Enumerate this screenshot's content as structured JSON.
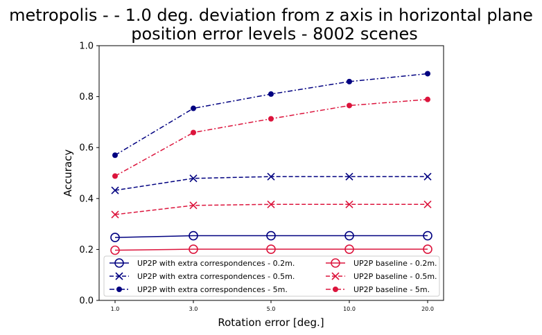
{
  "chart_data": {
    "type": "line",
    "title_line1": "metropolis -  - 1.0 deg. deviation from z axis in horizontal plane",
    "title_line2": "position error levels - 8002 scenes",
    "xlabel": "Rotation error [deg.]",
    "ylabel": "Accuracy",
    "categories": [
      "1.0",
      "3.0",
      "5.0",
      "10.0",
      "20.0"
    ],
    "ylim": [
      0.0,
      1.0
    ],
    "yticks": [
      "0.0",
      "0.2",
      "0.4",
      "0.6",
      "0.8",
      "1.0"
    ],
    "grid": false,
    "legend_position": "lower-center",
    "series": [
      {
        "name": "UP2P with extra correspondences - 0.2m.",
        "color": "#000080",
        "marker": "open-circle",
        "dash": "solid",
        "values": [
          0.247,
          0.254,
          0.254,
          0.254,
          0.254
        ]
      },
      {
        "name": "UP2P with extra correspondences - 0.5m.",
        "color": "#000080",
        "marker": "x",
        "dash": "dashed",
        "values": [
          0.432,
          0.479,
          0.486,
          0.486,
          0.486
        ]
      },
      {
        "name": "UP2P with extra correspondences - 5m.",
        "color": "#000080",
        "marker": "dot",
        "dash": "dashdot",
        "values": [
          0.57,
          0.754,
          0.81,
          0.859,
          0.89
        ]
      },
      {
        "name": "UP2P baseline - 0.2m.",
        "color": "#dc143c",
        "marker": "open-circle",
        "dash": "solid",
        "values": [
          0.197,
          0.201,
          0.201,
          0.201,
          0.201
        ]
      },
      {
        "name": "UP2P baseline - 0.5m.",
        "color": "#dc143c",
        "marker": "x",
        "dash": "dashed",
        "values": [
          0.337,
          0.373,
          0.377,
          0.377,
          0.377
        ]
      },
      {
        "name": "UP2P baseline - 5m.",
        "color": "#dc143c",
        "marker": "dot",
        "dash": "dashdot",
        "values": [
          0.488,
          0.659,
          0.713,
          0.765,
          0.789
        ]
      }
    ]
  }
}
